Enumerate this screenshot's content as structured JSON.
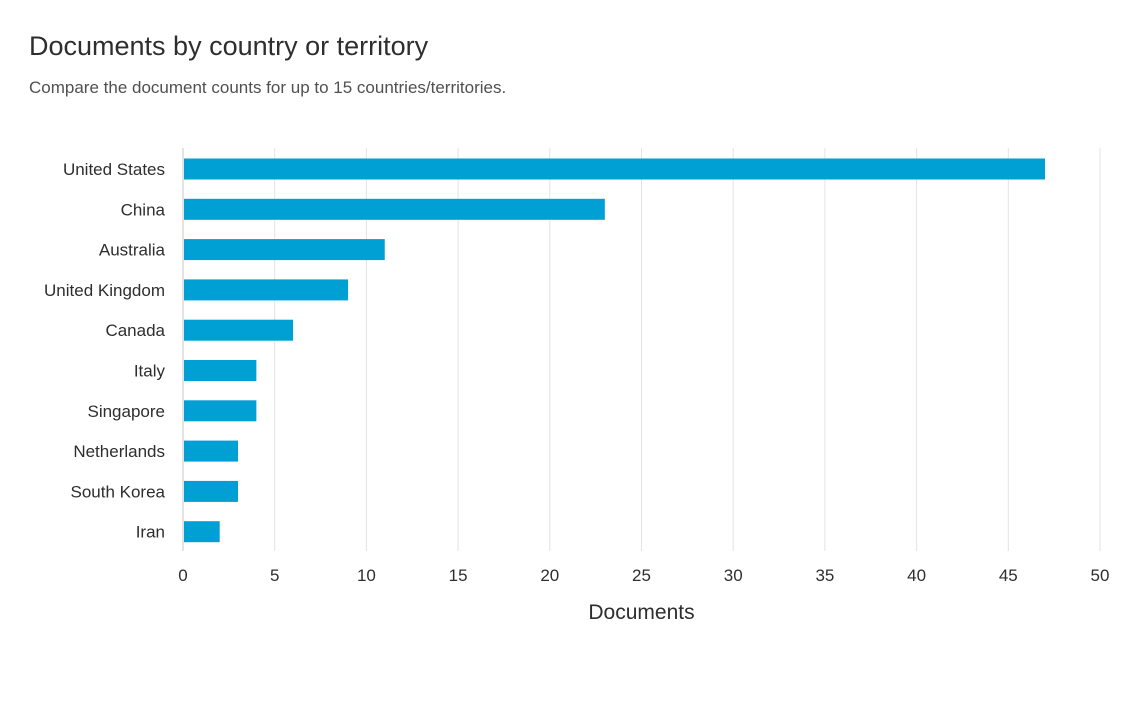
{
  "chart_data": {
    "type": "bar",
    "orientation": "horizontal",
    "title": "Documents by country or territory",
    "subtitle": "Compare the document counts for up to 15 countries/territories.",
    "xlabel": "Documents",
    "ylabel": "",
    "xlim": [
      0,
      50
    ],
    "x_ticks": [
      0,
      5,
      10,
      15,
      20,
      25,
      30,
      35,
      40,
      45,
      50
    ],
    "grid": true,
    "legend": false,
    "bar_color": "#009fd4",
    "categories": [
      "United States",
      "China",
      "Australia",
      "United Kingdom",
      "Canada",
      "Italy",
      "Singapore",
      "Netherlands",
      "South Korea",
      "Iran"
    ],
    "values": [
      47,
      23,
      11,
      9,
      6,
      4,
      4,
      3,
      3,
      2
    ]
  }
}
